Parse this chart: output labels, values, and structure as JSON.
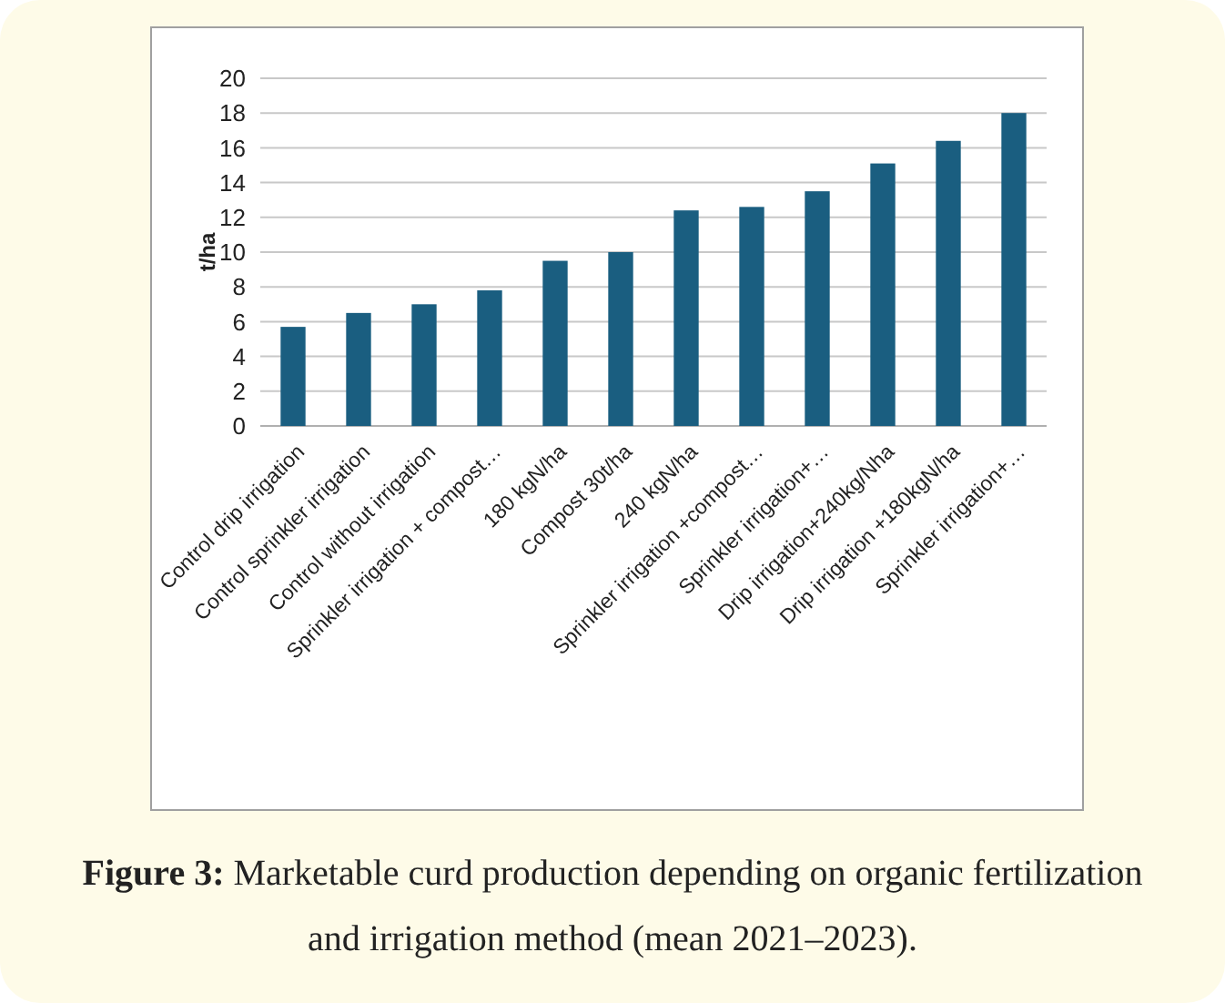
{
  "chart_data": {
    "type": "bar",
    "ylabel": "t/ha",
    "categories": [
      "Control drip irrigation",
      "Control sprinkler irrigation",
      "Control without irrigation",
      "Sprinkler irrigation + compost…",
      "180 kgN/ha",
      "Compost 30t/ha",
      "240 kgN/ha",
      "Sprinkler irrigation +compost…",
      "Sprinkler irrigation+…",
      "Drip irrigation+240kg/Nha",
      "Drip  irrigation +180kgN/ha",
      "Sprinkler irrigation+…"
    ],
    "values": [
      5.7,
      6.5,
      7.0,
      7.8,
      9.5,
      10.0,
      12.4,
      12.6,
      13.5,
      15.1,
      16.4,
      18.0
    ],
    "color": "#1a5e80",
    "ylim": [
      0,
      20
    ],
    "yticks": [
      0,
      2,
      4,
      6,
      8,
      10,
      12,
      14,
      16,
      18,
      20
    ],
    "grid": "y",
    "annotations": [
      "Figure 3:",
      "Marketable curd production depending on organic fertilization and irrigation method (mean 2021–2023)."
    ]
  }
}
